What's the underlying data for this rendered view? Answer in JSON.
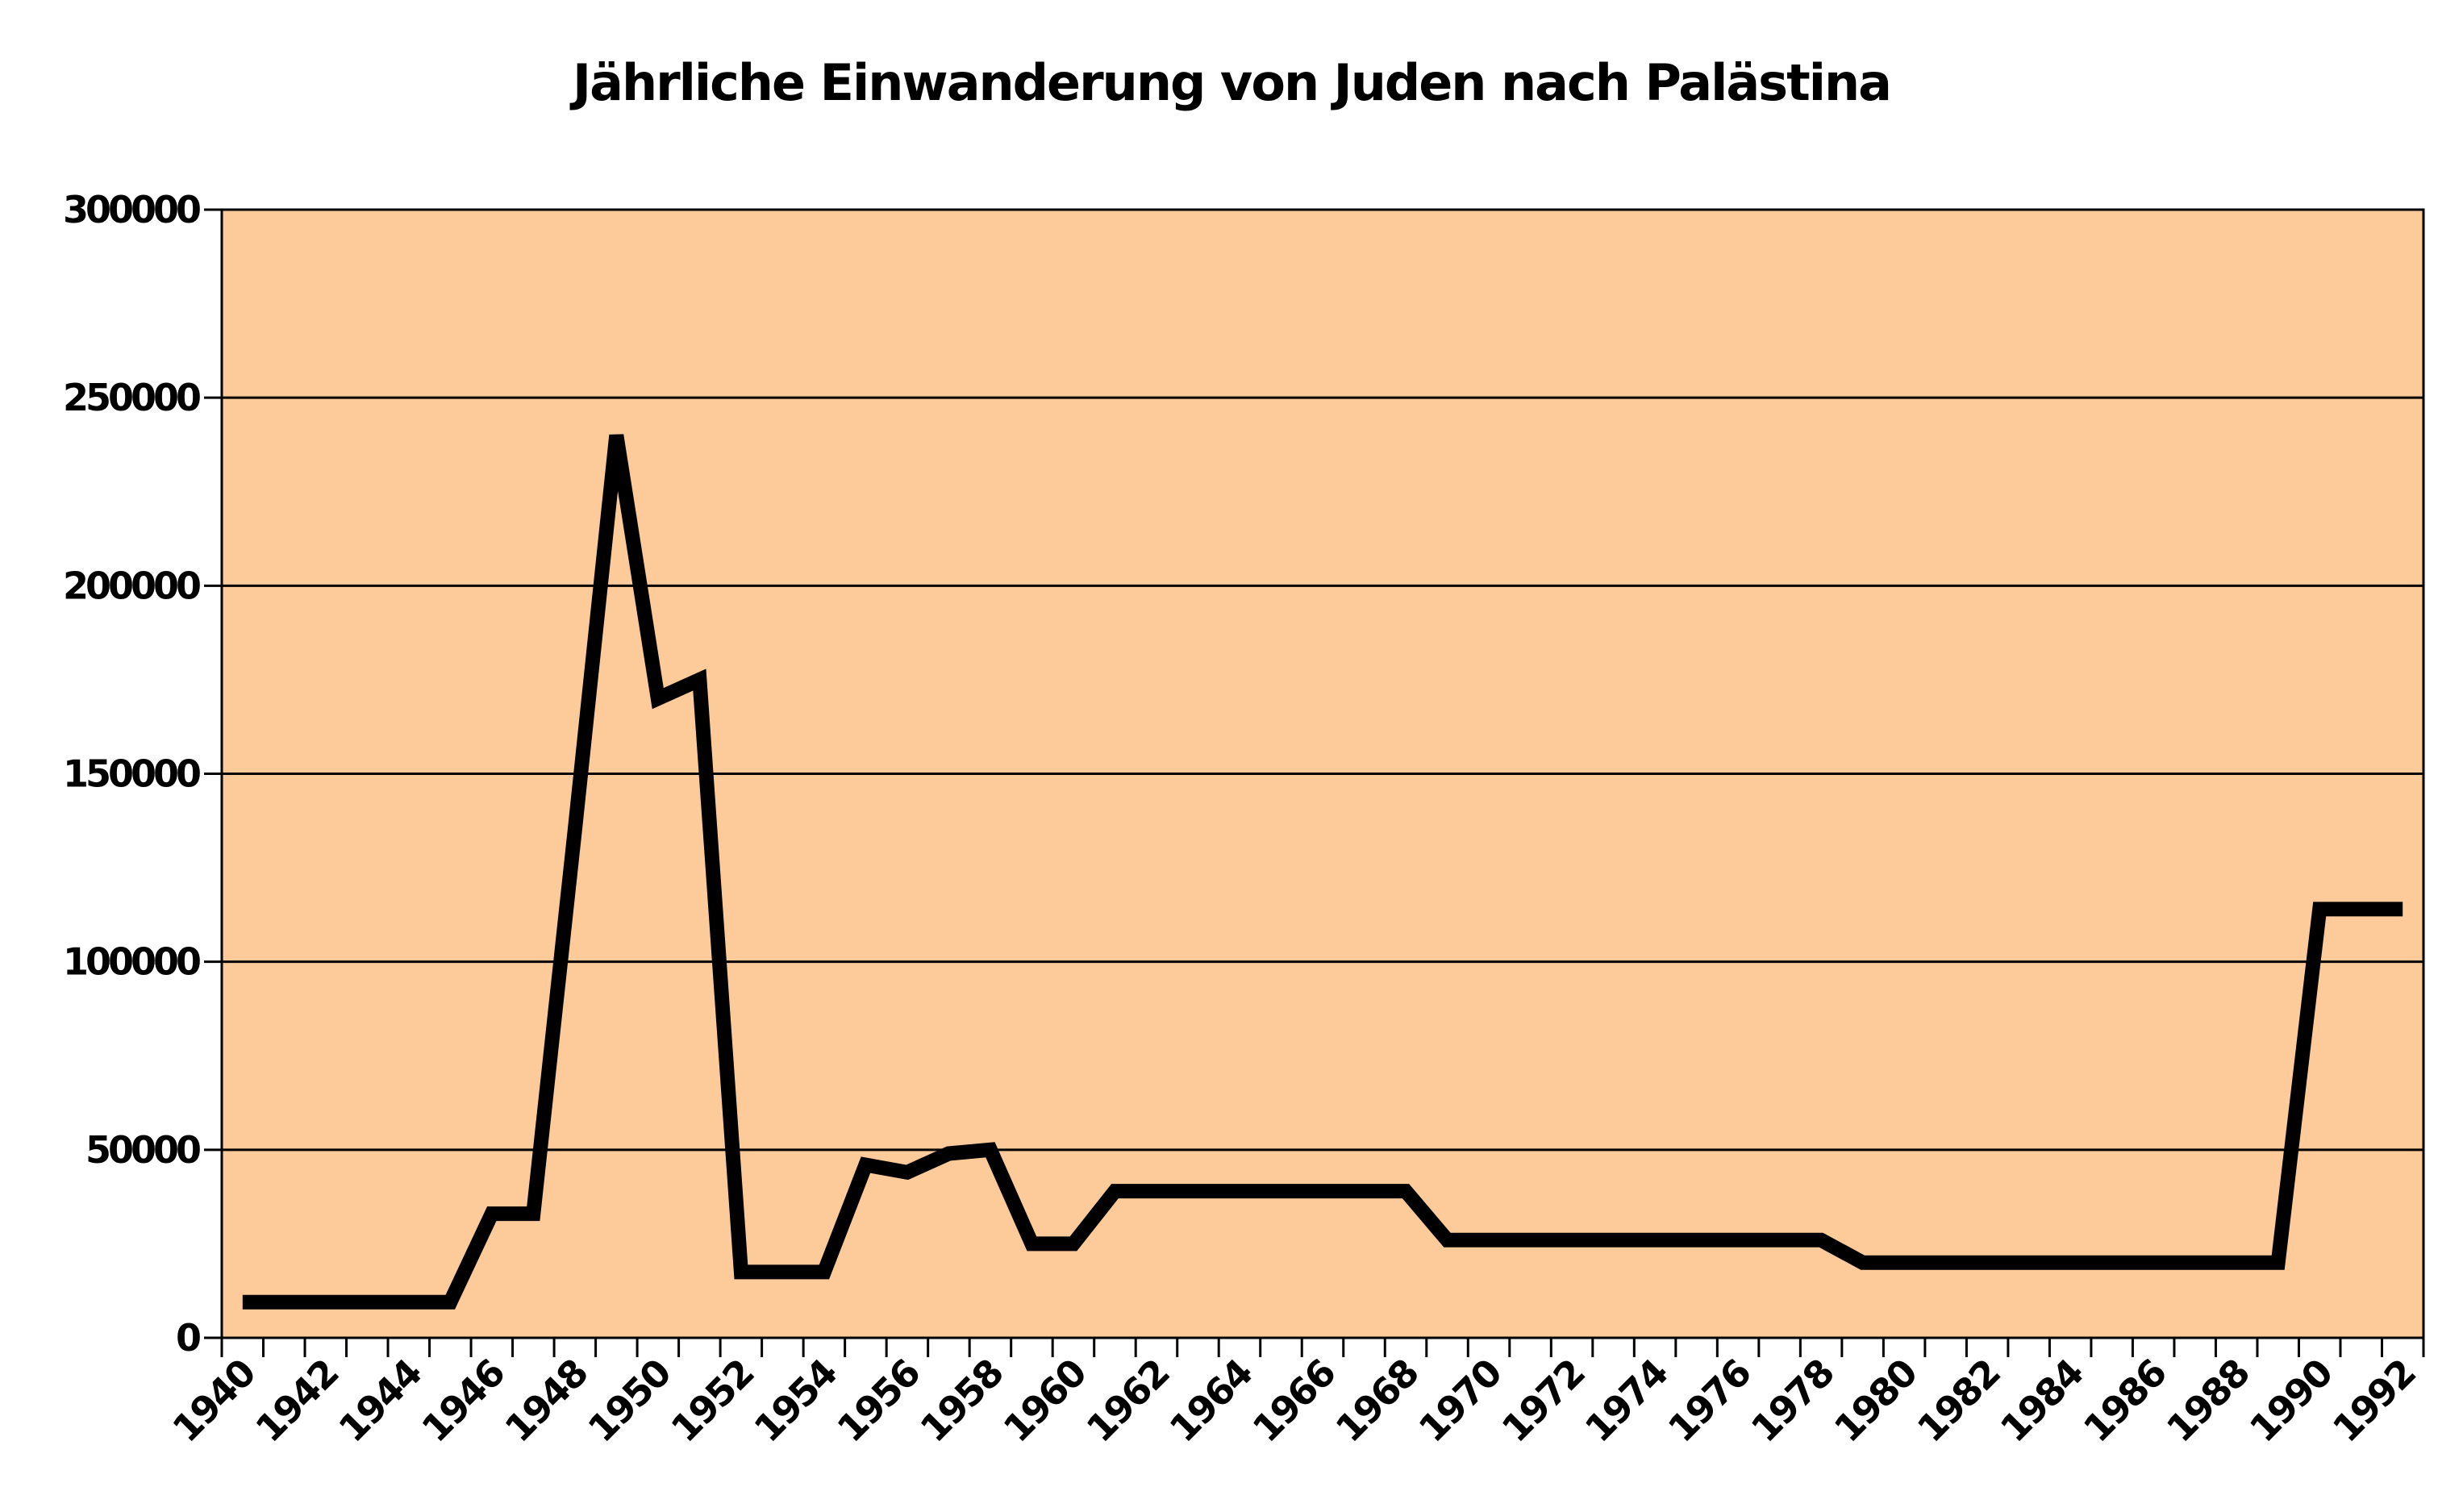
{
  "title": "Jährliche Einwanderung von Juden nach Palästina",
  "colors": {
    "page_background": "#FFFFFF",
    "plot_background": "#FCCB99",
    "line": "#000000",
    "grid": "#000000",
    "text": "#000000"
  },
  "y_axis": {
    "tick_labels": [
      "0",
      "50000",
      "100000",
      "150000",
      "200000",
      "250000",
      "300000"
    ]
  },
  "x_axis": {
    "tick_labels": [
      "1940",
      "1942",
      "1944",
      "1946",
      "1948",
      "1950",
      "1952",
      "1954",
      "1956",
      "1958",
      "1960",
      "1962",
      "1964",
      "1966",
      "1968",
      "1970",
      "1972",
      "1974",
      "1976",
      "1978",
      "1980",
      "1982",
      "1984",
      "1986",
      "1988",
      "1990",
      "1992"
    ]
  },
  "chart_data": {
    "type": "line",
    "title": "Jährliche Einwanderung von Juden nach Palästina",
    "xlabel": "",
    "ylabel": "",
    "ylim": [
      0,
      300000
    ],
    "ytick_step": 50000,
    "x_label_every": 2,
    "grid": true,
    "legend": false,
    "x": [
      1940,
      1941,
      1942,
      1943,
      1944,
      1945,
      1946,
      1947,
      1948,
      1949,
      1950,
      1951,
      1952,
      1953,
      1954,
      1955,
      1956,
      1957,
      1958,
      1959,
      1960,
      1961,
      1962,
      1963,
      1964,
      1965,
      1966,
      1967,
      1968,
      1969,
      1970,
      1971,
      1972,
      1973,
      1974,
      1975,
      1976,
      1977,
      1978,
      1979,
      1980,
      1981,
      1982,
      1983,
      1984,
      1985,
      1986,
      1987,
      1988,
      1989,
      1990,
      1991,
      1992
    ],
    "values": [
      9500,
      9500,
      9500,
      9500,
      9500,
      9500,
      33000,
      33000,
      135000,
      240000,
      170000,
      175000,
      17500,
      17500,
      17500,
      46000,
      44000,
      49000,
      50000,
      25000,
      25000,
      39000,
      39000,
      39000,
      39000,
      39000,
      39000,
      39000,
      39000,
      26000,
      26000,
      26000,
      26000,
      26000,
      26000,
      26000,
      26000,
      26000,
      26000,
      20000,
      20000,
      20000,
      20000,
      20000,
      20000,
      20000,
      20000,
      20000,
      20000,
      20000,
      114000,
      114000,
      114000
    ]
  }
}
